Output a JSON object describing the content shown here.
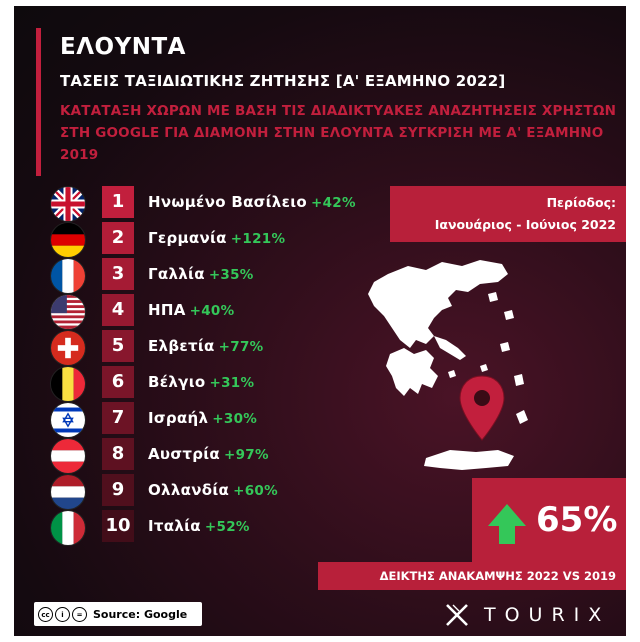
{
  "header": {
    "title": "ΕΛΟΥΝΤΑ",
    "subtitle": "ΤΑΣΕΙΣ ΤΑΞΙΔΙΩΤΙΚΗΣ ΖΗΤΗΣΗΣ [Α' ΕΞΑΜΗΝΟ 2022]",
    "description": "ΚΑΤΑΤΑΞΗ ΧΩΡΩΝ ΜΕ ΒΑΣΗ ΤΙΣ ΔΙΑΔΙΚΤΥΑΚΕΣ ΑΝΑΖΗΤΗΣΕΙΣ ΧΡΗΣΤΩΝ ΣΤΗ GOOGLE ΓΙΑ ΔΙΑΜΟΝΗ ΣΤΗΝ ΕΛΟΥΝΤΑ ΣΥΓΚΡΙΣΗ ΜΕ Α' ΕΞΑΜΗΝΟ 2019",
    "accent_color": "#c21f3d"
  },
  "ranking": [
    {
      "rank": "1",
      "country": "Ηνωμένο Βασίλειο",
      "change": "+42%",
      "flag": "uk-flag-icon"
    },
    {
      "rank": "2",
      "country": "Γερμανία",
      "change": "+121%",
      "flag": "germany-flag-icon"
    },
    {
      "rank": "3",
      "country": "Γαλλία",
      "change": "+35%",
      "flag": "france-flag-icon"
    },
    {
      "rank": "4",
      "country": "ΗΠΑ",
      "change": "+40%",
      "flag": "usa-flag-icon"
    },
    {
      "rank": "5",
      "country": "Ελβετία",
      "change": "+77%",
      "flag": "switzerland-flag-icon"
    },
    {
      "rank": "6",
      "country": "Βέλγιο",
      "change": "+31%",
      "flag": "belgium-flag-icon"
    },
    {
      "rank": "7",
      "country": "Ισραήλ",
      "change": "+30%",
      "flag": "israel-flag-icon"
    },
    {
      "rank": "8",
      "country": "Αυστρία",
      "change": "+97%",
      "flag": "austria-flag-icon"
    },
    {
      "rank": "9",
      "country": "Ολλανδία",
      "change": "+60%",
      "flag": "netherlands-flag-icon"
    },
    {
      "rank": "10",
      "country": "Ιταλία",
      "change": "+52%",
      "flag": "italy-flag-icon"
    }
  ],
  "period": {
    "label": "Περίοδος:",
    "value": "Ιανουάριος - Ιούνιος 2022"
  },
  "recovery": {
    "value": "65%",
    "label": "ΔΕΙΚΤΗΣ ΑΝΑΚΑΜΨΗΣ 2022 VS 2019",
    "arrow_color": "#34c759"
  },
  "footer": {
    "source": "Source: Google",
    "brand": "TOURIX"
  }
}
